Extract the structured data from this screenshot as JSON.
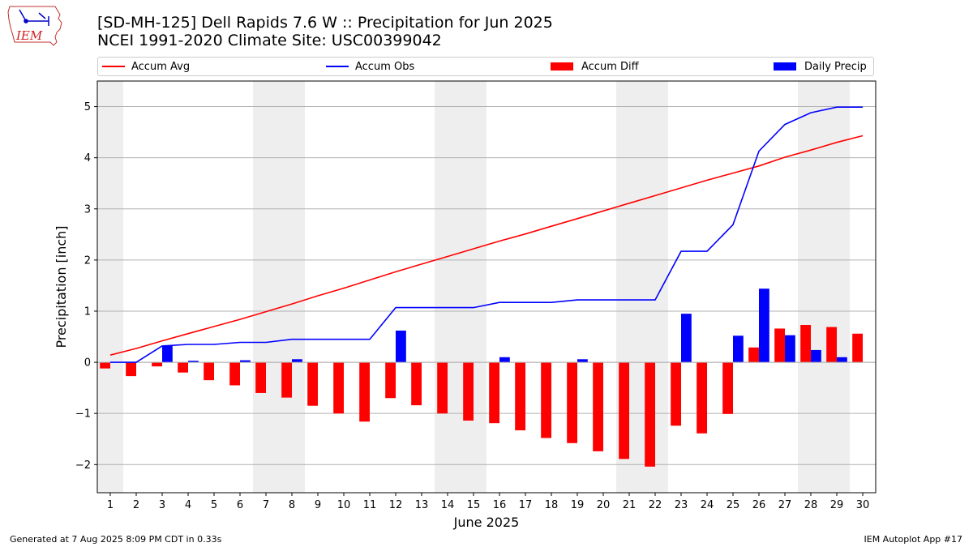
{
  "header": {
    "title_line1": "[SD-MH-125] Dell Rapids 7.6 W :: Precipitation for Jun 2025",
    "title_line2": "NCEI 1991-2020 Climate Site: USC00399042"
  },
  "logo": {
    "text": "IEM",
    "icon": "iowa-state-outline-icon"
  },
  "legend": {
    "accum_avg": "Accum Avg",
    "accum_obs": "Accum Obs",
    "accum_diff": "Accum Diff",
    "daily_precip": "Daily Precip"
  },
  "colors": {
    "avg": "#ff0000",
    "obs": "#0000ff",
    "diff": "#ff0000",
    "daily": "#0000ff",
    "weekend": "#eeeeee",
    "grid": "#b0b0b0"
  },
  "footer": {
    "left": "Generated at 7 Aug 2025 8:09 PM CDT in 0.33s",
    "right": "IEM Autoplot App #17"
  },
  "chart_data": {
    "type": "bar",
    "xlabel": "June 2025",
    "ylabel": "Precipitation [inch]",
    "xlim": [
      0.5,
      30.5
    ],
    "ylim": [
      -2.55,
      5.5
    ],
    "yticks": [
      -2,
      -1,
      0,
      1,
      2,
      3,
      4,
      5
    ],
    "grid": "y",
    "legend_position": "top",
    "weekend_days": [
      1,
      7,
      8,
      14,
      15,
      21,
      22,
      28,
      29
    ],
    "x": [
      1,
      2,
      3,
      4,
      5,
      6,
      7,
      8,
      9,
      10,
      11,
      12,
      13,
      14,
      15,
      16,
      17,
      18,
      19,
      20,
      21,
      22,
      23,
      24,
      25,
      26,
      27,
      28,
      29,
      30
    ],
    "series": [
      {
        "name": "Accum Avg",
        "kind": "line",
        "values": [
          0.14,
          0.27,
          0.42,
          0.56,
          0.7,
          0.84,
          0.99,
          1.14,
          1.3,
          1.45,
          1.61,
          1.77,
          1.92,
          2.07,
          2.22,
          2.37,
          2.51,
          2.66,
          2.81,
          2.96,
          3.11,
          3.26,
          3.41,
          3.56,
          3.7,
          3.84,
          4.01,
          4.15,
          4.3,
          4.43
        ]
      },
      {
        "name": "Accum Obs",
        "kind": "line",
        "values": [
          0.0,
          0.0,
          0.32,
          0.35,
          0.35,
          0.39,
          0.39,
          0.45,
          0.45,
          0.45,
          0.45,
          1.07,
          1.07,
          1.07,
          1.07,
          1.17,
          1.17,
          1.17,
          1.22,
          1.22,
          1.22,
          1.22,
          2.17,
          2.17,
          2.69,
          4.13,
          4.65,
          4.88,
          4.99,
          4.99
        ]
      },
      {
        "name": "Accum Diff",
        "kind": "bar",
        "values": [
          -0.12,
          -0.27,
          -0.08,
          -0.2,
          -0.35,
          -0.45,
          -0.6,
          -0.69,
          -0.85,
          -1.0,
          -1.16,
          -0.7,
          -0.84,
          -1.0,
          -1.14,
          -1.19,
          -1.33,
          -1.48,
          -1.58,
          -1.74,
          -1.89,
          -2.04,
          -1.24,
          -1.39,
          -1.01,
          0.29,
          0.66,
          0.73,
          0.69,
          0.56
        ]
      },
      {
        "name": "Daily Precip",
        "kind": "bar",
        "values": [
          0.0,
          0.0,
          0.32,
          0.03,
          0.0,
          0.04,
          0.0,
          0.06,
          0.0,
          0.0,
          0.0,
          0.62,
          0.0,
          0.0,
          0.0,
          0.1,
          0.0,
          0.0,
          0.06,
          0.0,
          0.0,
          0.0,
          0.95,
          0.0,
          0.52,
          1.44,
          0.53,
          0.24,
          0.1,
          0.0
        ]
      }
    ]
  }
}
